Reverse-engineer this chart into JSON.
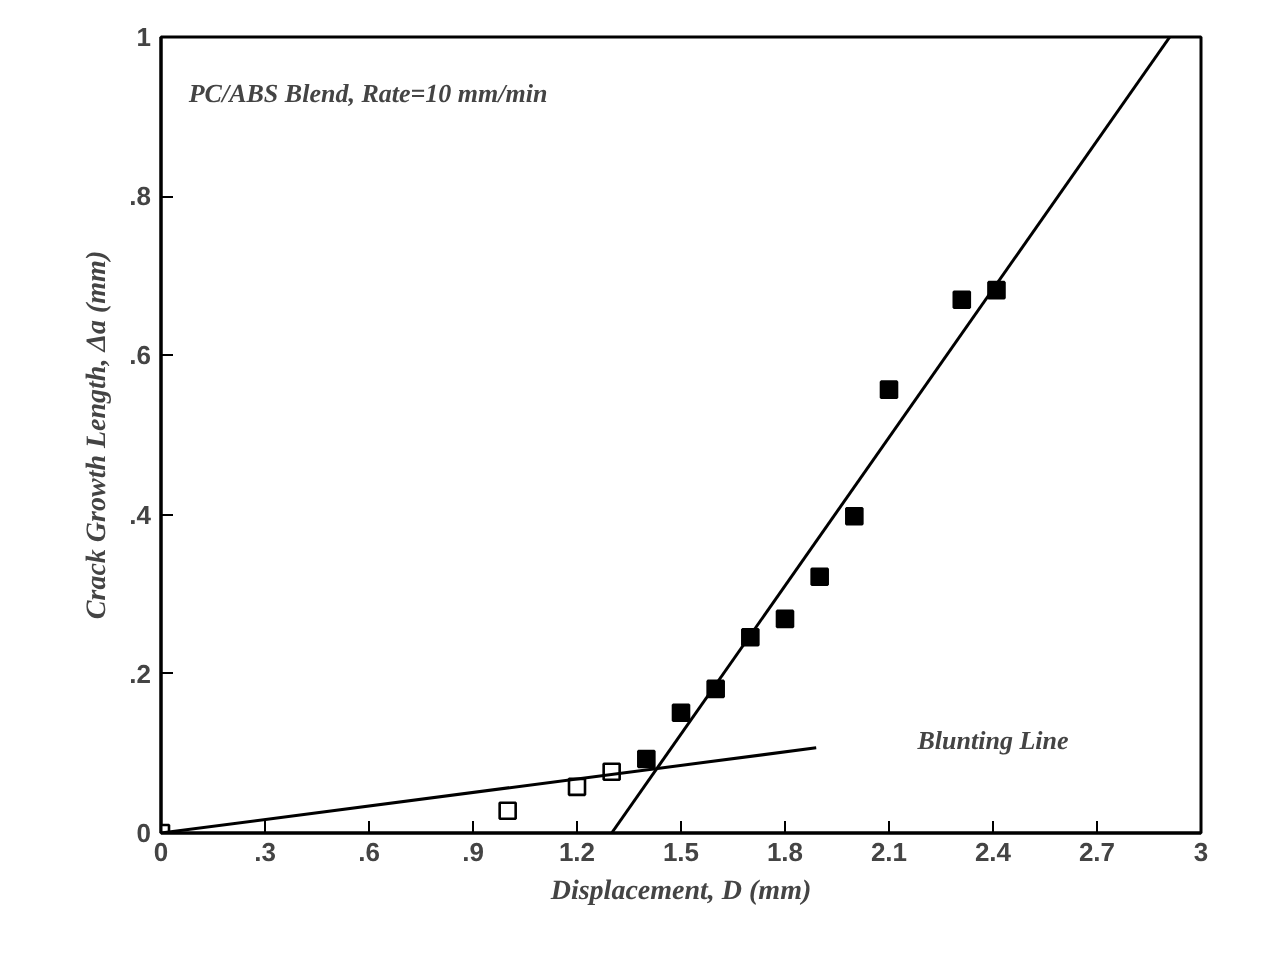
{
  "chart_data": {
    "type": "scatter",
    "xlabel": "Displacement, D (mm)",
    "ylabel": "Crack Growth Length, Δa (mm)",
    "annotations": [
      "PC/ABS Blend, Rate=10 mm/min",
      "Blunting Line"
    ],
    "series": [
      {
        "marker": "square",
        "color": "#ffffff",
        "x": [
          0,
          1.0,
          1.2,
          1.3
        ],
        "values": [
          0,
          0.028,
          0.058,
          0.077
        ]
      },
      {
        "marker": "square",
        "color": "#000000",
        "x": [
          1.4,
          1.5,
          1.6,
          1.7,
          1.8,
          1.9,
          2.0,
          2.1,
          2.31,
          2.41
        ],
        "values": [
          0.093,
          0.151,
          0.181,
          0.246,
          0.269,
          0.322,
          0.398,
          0.557,
          0.67,
          0.682
        ]
      },
      {
        "type": "line",
        "color": "#000000",
        "x": [
          0,
          1.89
        ],
        "values": [
          0,
          0.107
        ]
      },
      {
        "type": "line",
        "color": "#000000",
        "x": [
          1.3,
          2.91
        ],
        "values": [
          0,
          1.0
        ]
      }
    ],
    "xlim": [
      0,
      3
    ],
    "ylim": [
      0,
      1
    ],
    "xticks": [
      0,
      {
        "value": 0.3,
        "label": ".3"
      },
      {
        "value": 0.6,
        "label": ".6"
      },
      {
        "value": 0.9,
        "label": ".9"
      },
      1.2,
      1.5,
      1.8,
      2.1,
      2.4,
      2.7,
      3
    ],
    "yticks": [
      0,
      {
        "value": 0.2,
        "label": ".2"
      },
      {
        "value": 0.4,
        "label": ".4"
      },
      {
        "value": 0.6,
        "label": ".6"
      },
      {
        "value": 0.8,
        "label": ".8"
      },
      1
    ],
    "grid": false
  }
}
